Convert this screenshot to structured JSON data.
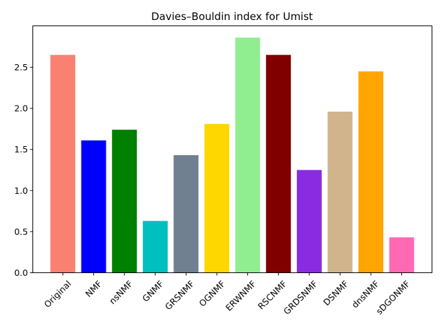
{
  "chart_data": {
    "type": "bar",
    "title": "Davies–Bouldin index for Umist",
    "xlabel": "",
    "ylabel": "",
    "categories": [
      "Original",
      "NMF",
      "nsNMF",
      "GNMF",
      "GRSNMF",
      "OGNMF",
      "ERWNMF",
      "RSCNMF",
      "GRDSNMF",
      "DSNMF",
      "dnsNMF",
      "sDGONMF"
    ],
    "values": [
      2.65,
      1.61,
      1.74,
      0.63,
      1.43,
      1.81,
      2.86,
      2.65,
      1.25,
      1.96,
      2.45,
      0.43
    ],
    "colors": [
      "#fa8072",
      "#0000ff",
      "#008000",
      "#00bfbf",
      "#708090",
      "#ffd700",
      "#90ee90",
      "#800000",
      "#8a2be2",
      "#d2b48c",
      "#ffa500",
      "#ff69b4"
    ],
    "ylim": [
      0,
      3.0
    ],
    "yticks": [
      "0.0",
      "0.5",
      "1.0",
      "1.5",
      "2.0",
      "2.5"
    ],
    "grid": false,
    "legend": "none"
  }
}
